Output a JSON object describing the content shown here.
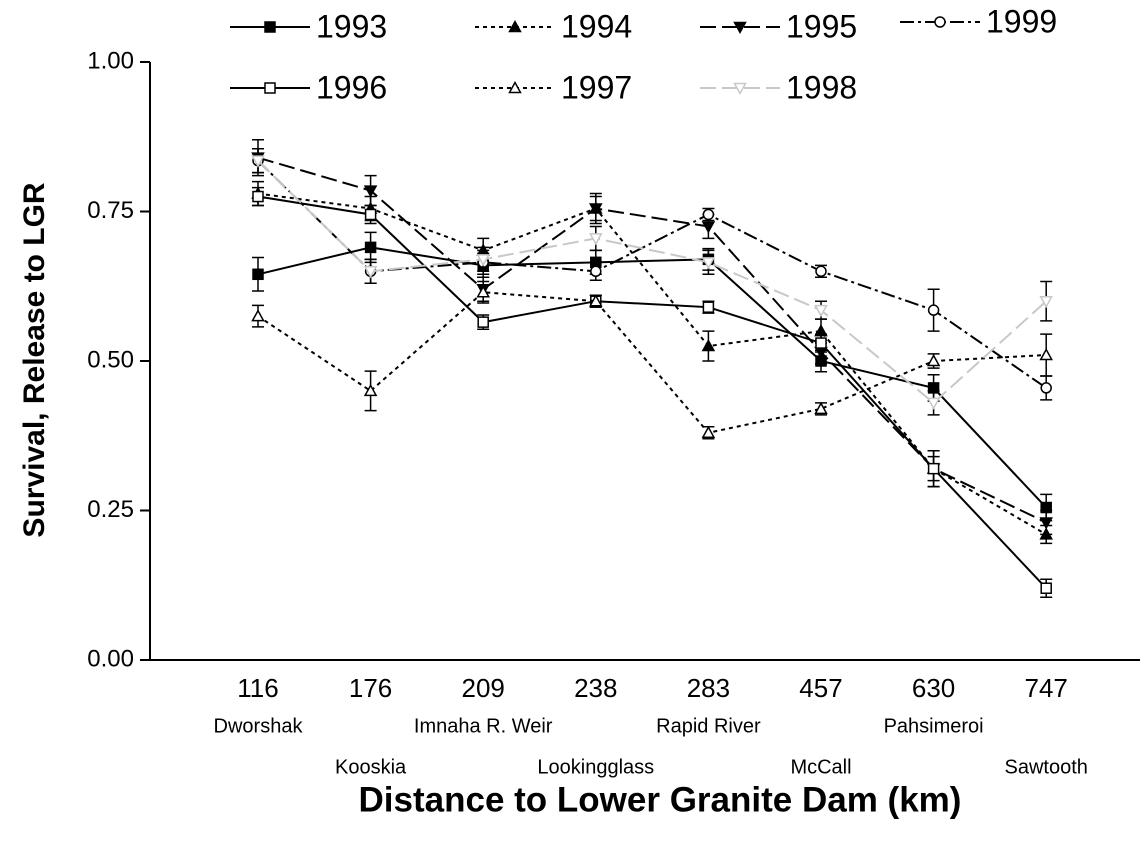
{
  "chart_data": {
    "type": "line",
    "y_label": "Survival, Release to LGR",
    "x_label": "Distance to Lower Granite Dam (km)",
    "categories": [
      "116",
      "176",
      "209",
      "238",
      "283",
      "457",
      "630",
      "747"
    ],
    "sites": [
      "Dworshak",
      "Kooskia",
      "Imnaha R. Weir",
      "Lookingglass",
      "Rapid River",
      "McCall",
      "Pahsimeroi",
      "Sawtooth"
    ],
    "ylim": [
      0,
      1
    ],
    "yticks": [
      {
        "value": 0,
        "label": "0.00"
      },
      0.25,
      {
        "value": 0.5,
        "label": "0.50"
      },
      0.75,
      {
        "value": 1,
        "label": "1.00"
      }
    ],
    "series": [
      {
        "name": "1993",
        "color": "#000000",
        "marker": "square",
        "filled": true,
        "dash": "solid",
        "values": [
          0.645,
          0.69,
          0.66,
          0.665,
          0.67,
          0.5,
          0.455,
          0.255
        ],
        "errors": [
          0.028,
          0.025,
          0.02,
          0.02,
          0.018,
          0.018,
          0.022,
          0.022
        ]
      },
      {
        "name": "1994",
        "color": "#000000",
        "marker": "triangle-up",
        "filled": true,
        "dash": "short",
        "values": [
          0.78,
          0.755,
          0.685,
          0.755,
          0.525,
          0.55,
          0.32,
          0.21
        ],
        "errors": [
          0.02,
          0.02,
          0.02,
          0.02,
          0.025,
          0.02,
          0.03,
          0.015
        ]
      },
      {
        "name": "1995",
        "color": "#000000",
        "marker": "triangle-down",
        "filled": true,
        "dash": "long",
        "values": [
          0.84,
          0.785,
          0.62,
          0.755,
          0.725,
          0.515,
          0.32,
          0.23
        ],
        "errors": [
          0.03,
          0.025,
          0.02,
          0.025,
          0.02,
          0.02,
          0.03,
          0.02
        ]
      },
      {
        "name": "1999",
        "color": "#000000",
        "marker": "circle",
        "filled": false,
        "dash": "dashdot",
        "values": [
          0.835,
          0.65,
          0.665,
          0.65,
          0.745,
          0.65,
          0.585,
          0.455
        ],
        "errors": [
          0.02,
          0.02,
          0.02,
          0.015,
          0.01,
          0.01,
          0.035,
          0.02
        ]
      },
      {
        "name": "1996",
        "color": "#000000",
        "marker": "square",
        "filled": false,
        "dash": "solid",
        "values": [
          0.775,
          0.745,
          0.565,
          0.6,
          0.59,
          0.53,
          0.32,
          0.12
        ],
        "errors": [
          0.015,
          0.015,
          0.012,
          0.01,
          0.01,
          0.015,
          0.02,
          0.015
        ]
      },
      {
        "name": "1997",
        "color": "#000000",
        "marker": "triangle-up",
        "filled": false,
        "dash": "short",
        "values": [
          0.575,
          0.45,
          0.615,
          0.6,
          0.38,
          0.42,
          0.5,
          0.51
        ],
        "errors": [
          0.018,
          0.033,
          0.018,
          0.01,
          0.01,
          0.01,
          0.012,
          0.035
        ]
      },
      {
        "name": "1998",
        "color": "#c8c8c8",
        "marker": "triangle-down",
        "filled": false,
        "dash": "long",
        "values": [
          0.835,
          0.65,
          0.67,
          0.705,
          0.665,
          0.585,
          0.43,
          0.6
        ],
        "errors": [
          0.02,
          0.02,
          0.02,
          0.02,
          0.02,
          0.015,
          0.02,
          0.033
        ]
      }
    ]
  }
}
